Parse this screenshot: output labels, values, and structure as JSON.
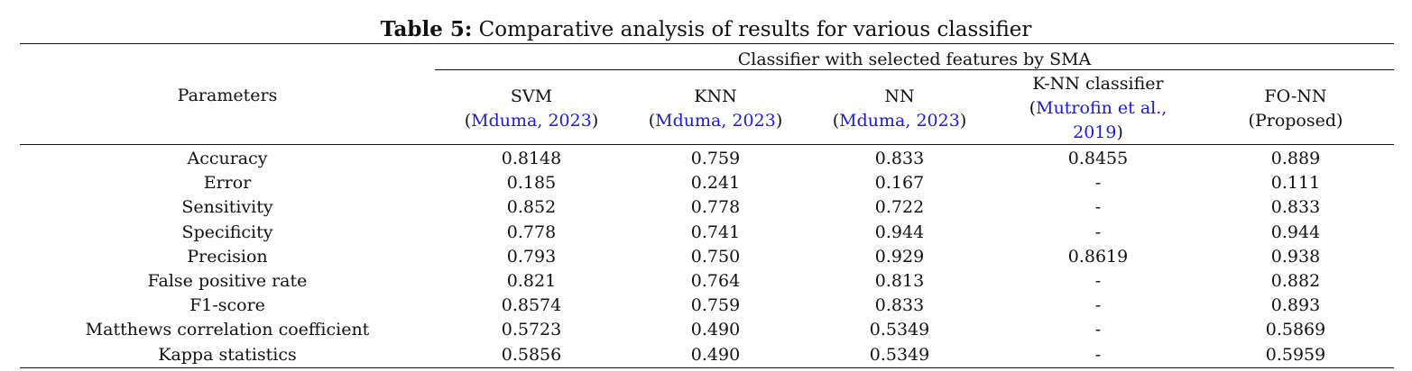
{
  "caption": {
    "label": "Table 5:",
    "text": " Comparative analysis of results for various classifier"
  },
  "header": {
    "parameters": "Parameters",
    "group_label": "Classifier with selected features by SMA",
    "columns": [
      {
        "name": "SVM",
        "cite_prefix": "(",
        "cite": "Mduma, 2023",
        "cite_suffix": ")"
      },
      {
        "name": "KNN",
        "cite_prefix": "(",
        "cite": "Mduma, 2023",
        "cite_suffix": ")"
      },
      {
        "name": "NN",
        "cite_prefix": "(",
        "cite": "Mduma, 2023",
        "cite_suffix": ")"
      },
      {
        "name": "K-NN classifier",
        "cite_prefix": "(",
        "cite_line1": "Mutrofin et al.,",
        "cite_line2": "2019",
        "cite_suffix": ")"
      },
      {
        "name": "FO-NN",
        "sub": "(Proposed)"
      }
    ]
  },
  "rows": [
    {
      "param": "Accuracy",
      "values": [
        "0.8148",
        "0.759",
        "0.833",
        "0.8455",
        "0.889"
      ]
    },
    {
      "param": "Error",
      "values": [
        "0.185",
        "0.241",
        "0.167",
        "-",
        "0.111"
      ]
    },
    {
      "param": "Sensitivity",
      "values": [
        "0.852",
        "0.778",
        "0.722",
        "-",
        "0.833"
      ]
    },
    {
      "param": "Specificity",
      "values": [
        "0.778",
        "0.741",
        "0.944",
        "-",
        "0.944"
      ]
    },
    {
      "param": "Precision",
      "values": [
        "0.793",
        "0.750",
        "0.929",
        "0.8619",
        "0.938"
      ]
    },
    {
      "param": "False positive rate",
      "values": [
        "0.821",
        "0.764",
        "0.813",
        "-",
        "0.882"
      ]
    },
    {
      "param": "F1-score",
      "values": [
        "0.8574",
        "0.759",
        "0.833",
        "-",
        "0.893"
      ]
    },
    {
      "param": "Matthews correlation coefficient",
      "values": [
        "0.5723",
        "0.490",
        "0.5349",
        "-",
        "0.5869"
      ]
    },
    {
      "param": "Kappa statistics",
      "values": [
        "0.5856",
        "0.490",
        "0.5349",
        "-",
        "0.5959"
      ]
    }
  ]
}
